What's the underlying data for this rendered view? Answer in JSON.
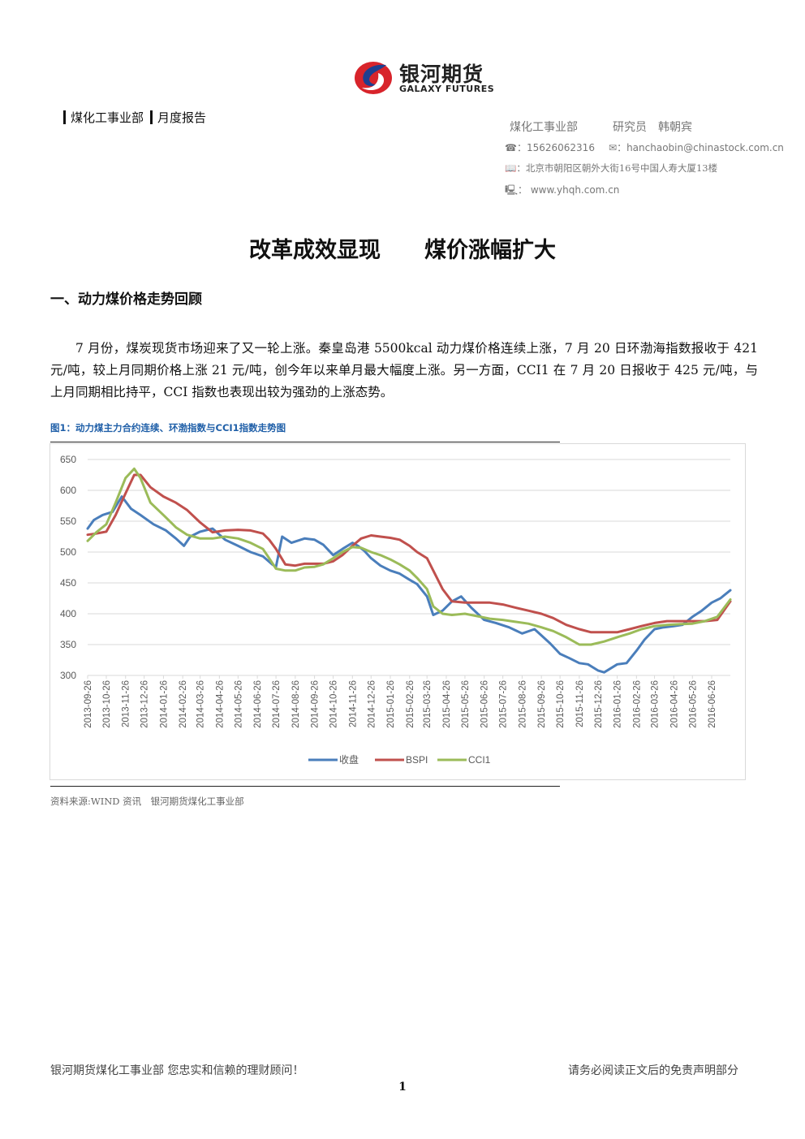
{
  "header": {
    "logo_cn": "银河期货",
    "logo_en": "GALAXY FUTURES",
    "dept_tag": "煤化工事业部",
    "report_tag": "月度报告"
  },
  "contact": {
    "dept": "煤化工事业部",
    "researcher": "研究员　韩朝宾",
    "phone_icon": "☎",
    "phone": "15626062316",
    "email_icon": "✉",
    "email": "hanchaobin@chinastock.com.cn",
    "address_icon": "📖",
    "address": "北京市朝阳区朝外大街16号中国人寿大厦13楼",
    "web_icon": "🖳",
    "website": "www.yhqh.com.cn"
  },
  "title": "改革成效显现　　煤价涨幅扩大",
  "section_heading": "一、动力煤价格走势回顾",
  "paragraph": "7 月份，煤炭现货市场迎来了又一轮上涨。秦皇岛港 5500kcal 动力煤价格连续上涨，7 月 20 日环渤海指数报收于 421 元/吨，较上月同期价格上涨 21 元/吨，创今年以来单月最大幅度上涨。另一方面，CCI1 在 7 月 20 日报收于 425 元/吨，与上月同期相比持平，CCI 指数也表现出较为强劲的上涨态势。",
  "figure_caption": "图1：动力煤主力合约连续、环渤指数与CCI1指数走势图",
  "source": "资料来源:WIND 资讯　银河期货煤化工事业部",
  "footer": {
    "left": "银河期货煤化工事业部  您忠实和信赖的理财顾问！",
    "right": "请务必阅读正文后的免责声明部分",
    "page": "1"
  },
  "chart_data": {
    "type": "line",
    "ylim": [
      300,
      650
    ],
    "yticks": [
      300,
      350,
      400,
      450,
      500,
      550,
      600,
      650
    ],
    "x_start": "2013-09-26",
    "x_end": "2016-07-26",
    "categories": [
      "2013-09-26",
      "2013-10-26",
      "2013-11-26",
      "2013-12-26",
      "2014-01-26",
      "2014-02-26",
      "2014-03-26",
      "2014-04-26",
      "2014-05-26",
      "2014-06-26",
      "2014-07-26",
      "2014-08-26",
      "2014-09-26",
      "2014-10-26",
      "2014-11-26",
      "2014-12-26",
      "2015-01-26",
      "2015-02-26",
      "2015-03-26",
      "2015-04-26",
      "2015-05-26",
      "2015-06-26",
      "2015-07-26",
      "2015-08-26",
      "2015-09-26",
      "2015-10-26",
      "2015-11-26",
      "2015-12-26",
      "2016-01-26",
      "2016-02-26",
      "2016-03-26",
      "2016-04-26",
      "2016-05-26",
      "2016-06-26"
    ],
    "grid": true,
    "legend_position": "bottom",
    "series": [
      {
        "name": "收盘",
        "color": "#4a7ebb",
        "x": [
          "2013-09-26",
          "2013-10-06",
          "2013-10-20",
          "2013-11-05",
          "2013-11-20",
          "2013-12-05",
          "2013-12-20",
          "2014-01-10",
          "2014-01-30",
          "2014-02-15",
          "2014-02-28",
          "2014-03-10",
          "2014-03-26",
          "2014-04-15",
          "2014-05-05",
          "2014-05-26",
          "2014-06-15",
          "2014-07-05",
          "2014-07-20",
          "2014-07-26",
          "2014-08-05",
          "2014-08-20",
          "2014-09-10",
          "2014-09-26",
          "2014-10-10",
          "2014-10-26",
          "2014-11-10",
          "2014-11-26",
          "2014-12-05",
          "2014-12-15",
          "2014-12-26",
          "2015-01-10",
          "2015-01-26",
          "2015-02-10",
          "2015-02-26",
          "2015-03-10",
          "2015-03-26",
          "2015-04-05",
          "2015-04-20",
          "2015-05-05",
          "2015-05-20",
          "2015-06-05",
          "2015-06-26",
          "2015-07-15",
          "2015-08-05",
          "2015-08-26",
          "2015-09-15",
          "2015-09-26",
          "2015-10-10",
          "2015-10-26",
          "2015-11-10",
          "2015-11-26",
          "2015-12-10",
          "2015-12-26",
          "2016-01-05",
          "2016-01-26",
          "2016-02-10",
          "2016-02-26",
          "2016-03-10",
          "2016-03-26",
          "2016-04-10",
          "2016-04-26",
          "2016-05-10",
          "2016-05-26",
          "2016-06-10",
          "2016-06-26",
          "2016-07-10",
          "2016-07-26"
        ],
        "values": [
          538,
          552,
          560,
          565,
          590,
          570,
          560,
          545,
          535,
          522,
          510,
          525,
          533,
          538,
          520,
          510,
          500,
          493,
          480,
          476,
          525,
          515,
          522,
          520,
          512,
          495,
          505,
          515,
          510,
          502,
          490,
          478,
          470,
          465,
          455,
          448,
          428,
          398,
          405,
          420,
          428,
          410,
          390,
          385,
          378,
          368,
          375,
          365,
          352,
          335,
          328,
          320,
          318,
          308,
          305,
          318,
          320,
          340,
          358,
          375,
          378,
          380,
          382,
          395,
          405,
          418,
          425,
          438
        ]
      },
      {
        "name": "BSPI",
        "color": "#c0504d",
        "x": [
          "2013-09-26",
          "2013-10-10",
          "2013-10-26",
          "2013-11-10",
          "2013-11-26",
          "2013-12-10",
          "2013-12-20",
          "2014-01-05",
          "2014-01-26",
          "2014-02-15",
          "2014-03-05",
          "2014-03-26",
          "2014-04-15",
          "2014-05-05",
          "2014-05-26",
          "2014-06-15",
          "2014-07-05",
          "2014-07-15",
          "2014-07-26",
          "2014-08-10",
          "2014-08-26",
          "2014-09-10",
          "2014-09-26",
          "2014-10-10",
          "2014-10-26",
          "2014-11-10",
          "2014-11-26",
          "2014-12-10",
          "2014-12-26",
          "2015-01-10",
          "2015-01-26",
          "2015-02-10",
          "2015-02-26",
          "2015-03-10",
          "2015-03-26",
          "2015-04-05",
          "2015-04-20",
          "2015-05-05",
          "2015-05-26",
          "2015-06-15",
          "2015-07-05",
          "2015-07-26",
          "2015-08-15",
          "2015-09-05",
          "2015-09-26",
          "2015-10-15",
          "2015-11-05",
          "2015-11-26",
          "2015-12-15",
          "2016-01-05",
          "2016-01-26",
          "2016-02-15",
          "2016-03-05",
          "2016-03-26",
          "2016-04-15",
          "2016-05-05",
          "2016-05-26",
          "2016-06-15",
          "2016-07-05",
          "2016-07-26"
        ],
        "values": [
          528,
          530,
          533,
          560,
          595,
          625,
          625,
          605,
          590,
          580,
          568,
          548,
          532,
          535,
          536,
          535,
          530,
          520,
          505,
          480,
          478,
          481,
          481,
          481,
          485,
          495,
          510,
          522,
          527,
          525,
          523,
          520,
          510,
          500,
          490,
          470,
          440,
          420,
          418,
          418,
          418,
          415,
          410,
          405,
          400,
          393,
          382,
          375,
          370,
          370,
          370,
          375,
          380,
          385,
          388,
          388,
          388,
          388,
          390,
          420
        ]
      },
      {
        "name": "CCI1",
        "color": "#9bbb59",
        "x": [
          "2013-09-26",
          "2013-10-10",
          "2013-10-26",
          "2013-11-10",
          "2013-11-26",
          "2013-12-10",
          "2013-12-20",
          "2014-01-05",
          "2014-01-26",
          "2014-02-15",
          "2014-03-05",
          "2014-03-26",
          "2014-04-15",
          "2014-05-05",
          "2014-05-26",
          "2014-06-15",
          "2014-07-05",
          "2014-07-15",
          "2014-07-26",
          "2014-08-10",
          "2014-08-26",
          "2014-09-10",
          "2014-09-26",
          "2014-10-10",
          "2014-10-26",
          "2014-11-10",
          "2014-11-26",
          "2014-12-10",
          "2014-12-26",
          "2015-01-10",
          "2015-01-26",
          "2015-02-10",
          "2015-02-26",
          "2015-03-10",
          "2015-03-26",
          "2015-04-05",
          "2015-04-20",
          "2015-05-05",
          "2015-05-26",
          "2015-06-15",
          "2015-07-05",
          "2015-07-26",
          "2015-08-15",
          "2015-09-05",
          "2015-09-26",
          "2015-10-15",
          "2015-11-05",
          "2015-11-26",
          "2015-12-15",
          "2016-01-05",
          "2016-01-26",
          "2016-02-15",
          "2016-03-05",
          "2016-03-26",
          "2016-04-15",
          "2016-05-05",
          "2016-05-26",
          "2016-06-15",
          "2016-07-05",
          "2016-07-26"
        ],
        "values": [
          518,
          532,
          545,
          580,
          620,
          635,
          620,
          580,
          560,
          540,
          528,
          522,
          522,
          525,
          522,
          515,
          505,
          490,
          473,
          470,
          470,
          475,
          476,
          480,
          490,
          500,
          508,
          507,
          500,
          495,
          488,
          480,
          470,
          458,
          440,
          412,
          400,
          398,
          400,
          396,
          392,
          390,
          387,
          384,
          378,
          372,
          362,
          350,
          350,
          355,
          362,
          368,
          375,
          380,
          382,
          383,
          384,
          388,
          395,
          423
        ]
      }
    ]
  }
}
